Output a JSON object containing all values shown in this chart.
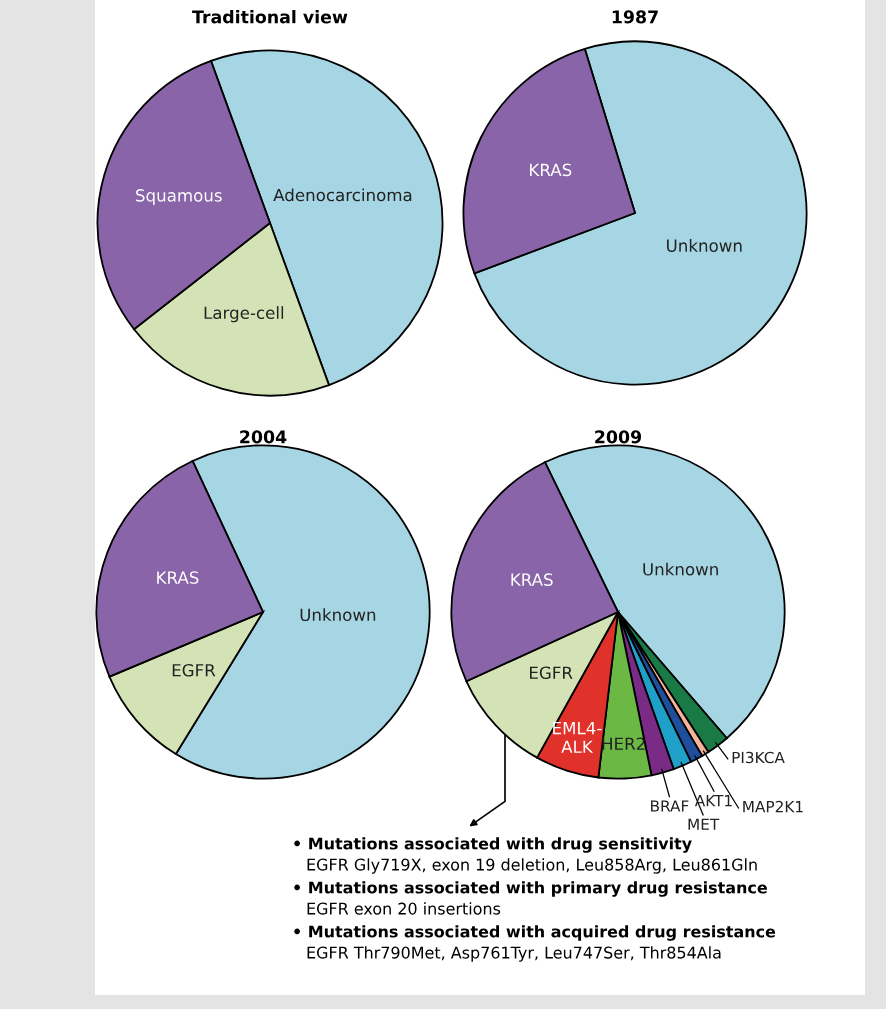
{
  "chart_data": [
    {
      "type": "pie",
      "title": "Traditional view",
      "categories": [
        "Adenocarcinoma",
        "Large-cell",
        "Squamous"
      ],
      "values": [
        50,
        20,
        30
      ],
      "colors": [
        "#a6d6e3",
        "#d3e3b5",
        "#8a64a8"
      ]
    },
    {
      "type": "pie",
      "title": "1987",
      "categories": [
        "Unknown",
        "KRAS"
      ],
      "values": [
        74,
        26
      ],
      "colors": [
        "#a6d6e3",
        "#8a64a8"
      ]
    },
    {
      "type": "pie",
      "title": "2004",
      "categories": [
        "Unknown",
        "EGFR",
        "KRAS"
      ],
      "values": [
        65.7,
        9.9,
        24.4
      ],
      "colors": [
        "#a6d6e3",
        "#d3e3b5",
        "#8a64a8"
      ]
    },
    {
      "type": "pie",
      "title": "2009",
      "categories": [
        "Unknown",
        "PI3KCA",
        "MAP2K1",
        "AKT1",
        "MET",
        "BRAF",
        "HER2",
        "EML4-\nALK",
        "EGFR",
        "KRAS"
      ],
      "values": [
        45.9,
        2.2,
        0.7,
        1.2,
        1.8,
        2.2,
        5.1,
        6.2,
        10.1,
        24.6
      ],
      "colors": [
        "#a6d6e3",
        "#1a7a45",
        "#f5b49a",
        "#1f4f9c",
        "#1ea0c9",
        "#7a2b86",
        "#6bb844",
        "#e0322b",
        "#d3e3b5",
        "#8a64a8"
      ],
      "annotations": [
        "• Mutations associated with drug sensitivity",
        "EGFR Gly719X, exon 19 deletion, Leu858Arg, Leu861Gln",
        "• Mutations associated with primary drug resistance",
        "EGFR exon 20 insertions",
        "• Mutations associated with acquired drug resistance",
        "EGFR Thr790Met, Asp761Tyr, Leu747Ser, Thr854Ala"
      ]
    }
  ]
}
